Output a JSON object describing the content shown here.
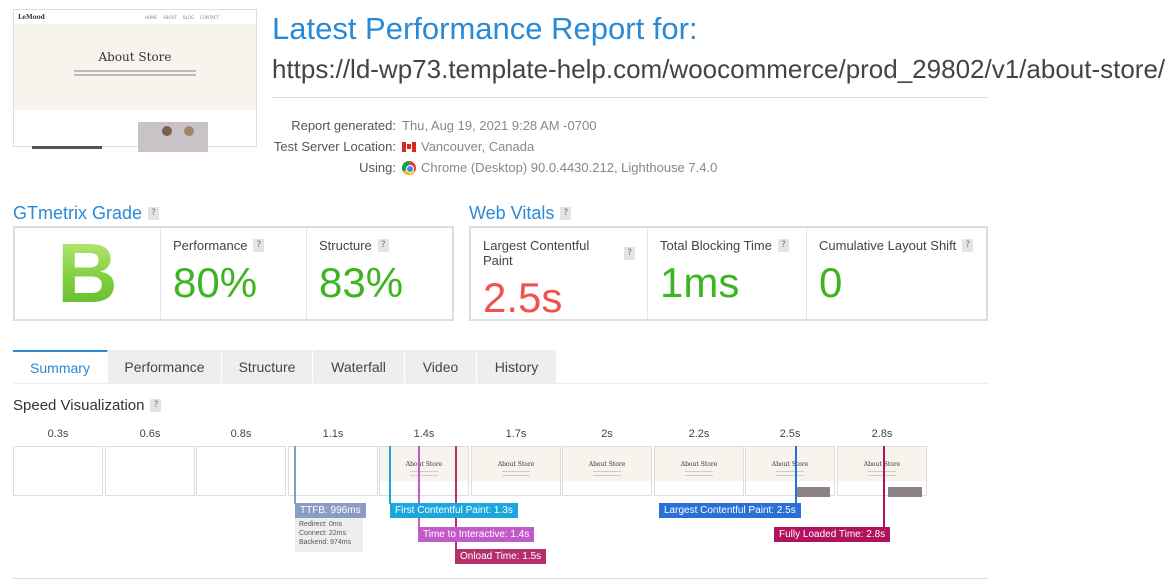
{
  "thumbnail": {
    "logo": "LeMood",
    "nav": [
      "HOME",
      "ABOUT",
      "BLOG",
      "CONTACT"
    ],
    "heading": "About Store"
  },
  "header": {
    "title": "Latest Performance Report for:",
    "url": "https://ld-wp73.template-help.com/woocommerce/prod_29802/v1/about-store/"
  },
  "meta": {
    "generated_label": "Report generated:",
    "generated_value": "Thu, Aug 19, 2021 9:28 AM -0700",
    "location_label": "Test Server Location:",
    "location_value": "Vancouver, Canada",
    "using_label": "Using:",
    "using_value": "Chrome (Desktop) 90.0.4430.212, Lighthouse 7.4.0"
  },
  "gtmetrix": {
    "heading": "GTmetrix Grade",
    "grade": "B",
    "performance_label": "Performance",
    "performance_value": "80%",
    "structure_label": "Structure",
    "structure_value": "83%",
    "color_good": "#3cb521"
  },
  "web_vitals": {
    "heading": "Web Vitals",
    "lcp_label": "Largest Contentful Paint",
    "lcp_value": "2.5s",
    "tbt_label": "Total Blocking Time",
    "tbt_value": "1ms",
    "cls_label": "Cumulative Layout Shift",
    "cls_value": "0",
    "color_bad": "#f0524f",
    "color_good": "#3cb521"
  },
  "tabs": [
    {
      "label": "Summary",
      "active": true
    },
    {
      "label": "Performance",
      "active": false
    },
    {
      "label": "Structure",
      "active": false
    },
    {
      "label": "Waterfall",
      "active": false
    },
    {
      "label": "Video",
      "active": false
    },
    {
      "label": "History",
      "active": false
    }
  ],
  "speed": {
    "heading": "Speed Visualization",
    "times": [
      "0.3s",
      "0.6s",
      "0.8s",
      "1.1s",
      "1.4s",
      "1.7s",
      "2s",
      "2.2s",
      "2.5s",
      "2.8s"
    ],
    "frames": [
      "blank",
      "blank",
      "blank",
      "blank",
      "partial",
      "page",
      "page",
      "page",
      "photo",
      "photo"
    ],
    "markers": [
      {
        "id": "ttfb",
        "label": "TTFB: 996ms",
        "color": "#8a9bc4"
      },
      {
        "id": "fcp",
        "label": "First Contentful Paint: 1.3s",
        "color": "#1aa7dc"
      },
      {
        "id": "tti",
        "label": "Time to Interactive: 1.4s",
        "color": "#c25ac9"
      },
      {
        "id": "onload",
        "label": "Onload Time: 1.5s",
        "color": "#b4306b"
      },
      {
        "id": "lcp",
        "label": "Largest Contentful Paint: 2.5s",
        "color": "#2a6fd6"
      },
      {
        "id": "fully",
        "label": "Fully Loaded Time: 2.8s",
        "color": "#b0125f"
      }
    ],
    "ttfb_detail": {
      "redirect": "Redirect: 0ms",
      "connect": "Connect: 22ms",
      "backend": "Backend: 974ms"
    }
  }
}
